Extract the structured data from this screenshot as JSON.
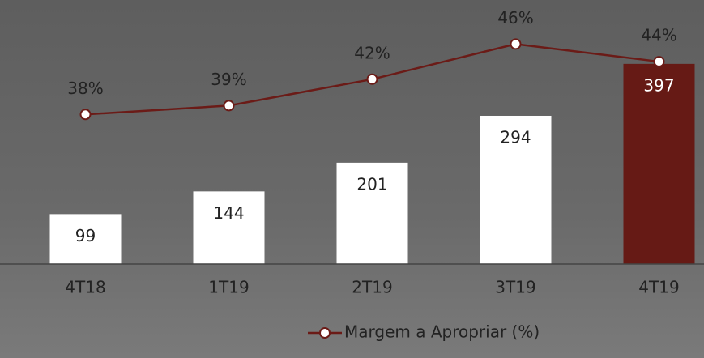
{
  "chart_data": {
    "type": "bar-line",
    "categories": [
      "4T18",
      "1T19",
      "2T19",
      "3T19",
      "4T19"
    ],
    "series": [
      {
        "type": "bar",
        "values": [
          99,
          144,
          201,
          294,
          397
        ],
        "colors": [
          "#ffffff",
          "#ffffff",
          "#ffffff",
          "#ffffff",
          "#661a15"
        ],
        "label_colors": [
          "#222222",
          "#222222",
          "#222222",
          "#222222",
          "#ffffff"
        ]
      },
      {
        "type": "line",
        "name": "Margem a Apropriar (%)",
        "color": "#6b1b17",
        "axis": "y2",
        "values": [
          38,
          39,
          42,
          46,
          44
        ],
        "value_labels": [
          "38%",
          "39%",
          "42%",
          "46%",
          "44%"
        ]
      }
    ],
    "ylim": [
      0,
      400
    ],
    "y2lim": [
      21,
      51
    ],
    "legend": "bottom"
  }
}
